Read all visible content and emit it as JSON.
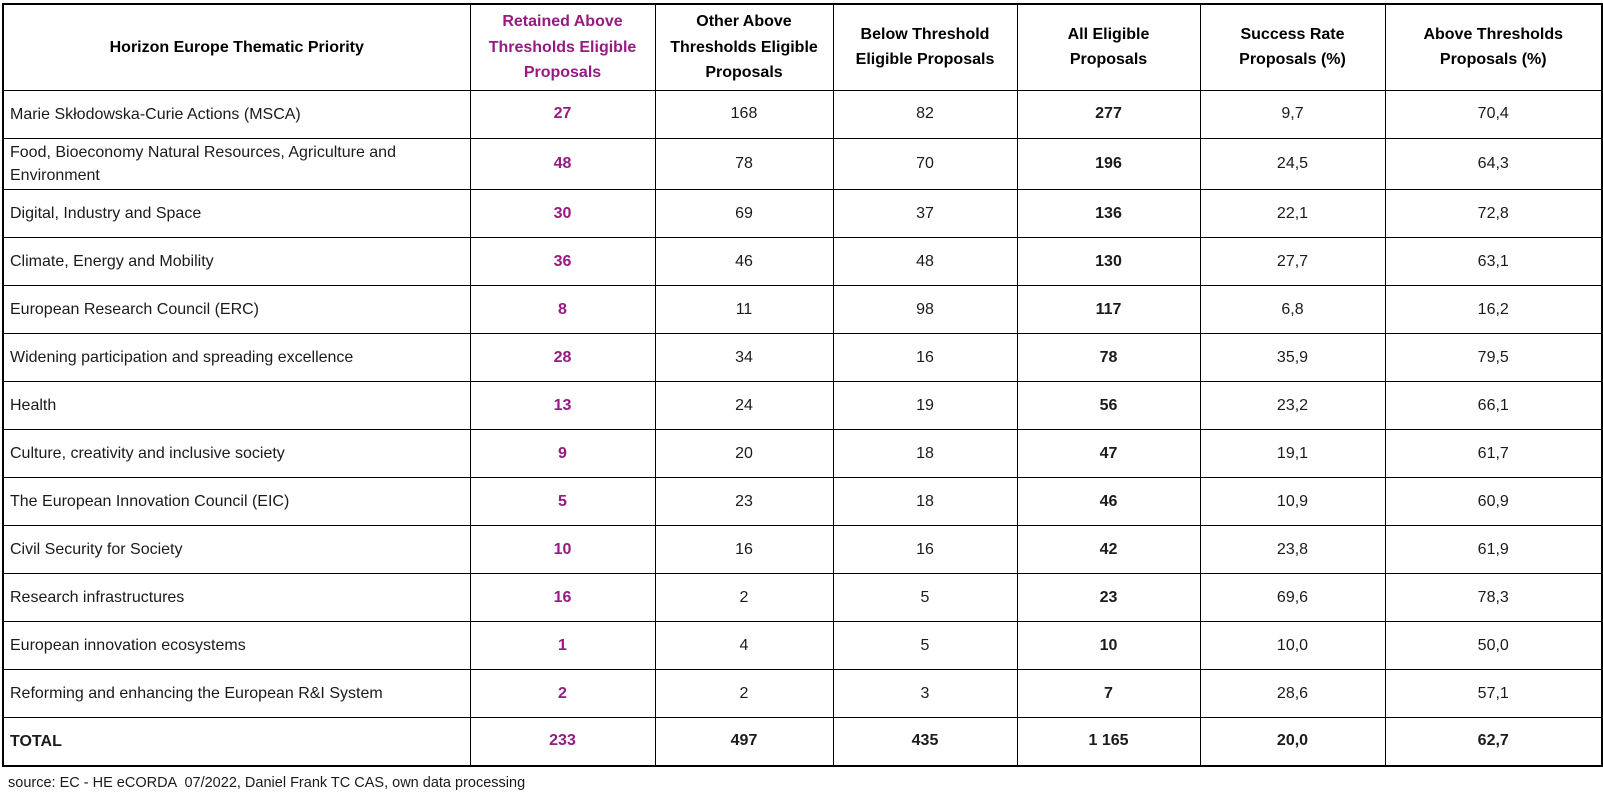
{
  "colors": {
    "accent_purple": "#951B81",
    "border": "#000000",
    "background": "#FFFFFF"
  },
  "table": {
    "columns": [
      {
        "label": "Horizon Europe Thematic Priority"
      },
      {
        "label": "Retained Above Thresholds Eligible Proposals",
        "accent": "purple"
      },
      {
        "label": "Other Above Thresholds Eligible Proposals"
      },
      {
        "label": "Below Threshold Eligible Proposals"
      },
      {
        "label": "All Eligible Proposals"
      },
      {
        "label": "Success Rate Proposals (%)"
      },
      {
        "label": "Above Thresholds Proposals (%)"
      }
    ],
    "rows": [
      {
        "priority": "Marie Skłodowska-Curie Actions (MSCA)",
        "retained": "27",
        "other": "168",
        "below": "82",
        "all": "277",
        "success": "9,7",
        "above": "70,4"
      },
      {
        "priority": "Food, Bioeconomy Natural Resources, Agriculture and Environment",
        "retained": "48",
        "other": "78",
        "below": "70",
        "all": "196",
        "success": "24,5",
        "above": "64,3"
      },
      {
        "priority": "Digital, Industry and Space",
        "retained": "30",
        "other": "69",
        "below": "37",
        "all": "136",
        "success": "22,1",
        "above": "72,8"
      },
      {
        "priority": "Climate, Energy and Mobility",
        "retained": "36",
        "other": "46",
        "below": "48",
        "all": "130",
        "success": "27,7",
        "above": "63,1"
      },
      {
        "priority": "European Research Council (ERC)",
        "retained": "8",
        "other": "11",
        "below": "98",
        "all": "117",
        "success": "6,8",
        "above": "16,2"
      },
      {
        "priority": "Widening participation and spreading excellence",
        "retained": "28",
        "other": "34",
        "below": "16",
        "all": "78",
        "success": "35,9",
        "above": "79,5"
      },
      {
        "priority": "Health",
        "retained": "13",
        "other": "24",
        "below": "19",
        "all": "56",
        "success": "23,2",
        "above": "66,1"
      },
      {
        "priority": "Culture, creativity and inclusive society",
        "retained": "9",
        "other": "20",
        "below": "18",
        "all": "47",
        "success": "19,1",
        "above": "61,7"
      },
      {
        "priority": "The European Innovation Council (EIC)",
        "retained": "5",
        "other": "23",
        "below": "18",
        "all": "46",
        "success": "10,9",
        "above": "60,9"
      },
      {
        "priority": "Civil Security for Society",
        "retained": "10",
        "other": "16",
        "below": "16",
        "all": "42",
        "success": "23,8",
        "above": "61,9"
      },
      {
        "priority": "Research infrastructures",
        "retained": "16",
        "other": "2",
        "below": "5",
        "all": "23",
        "success": "69,6",
        "above": "78,3"
      },
      {
        "priority": "European innovation ecosystems",
        "retained": "1",
        "other": "4",
        "below": "5",
        "all": "10",
        "success": "10,0",
        "above": "50,0"
      },
      {
        "priority": "Reforming and enhancing the European R&I System",
        "retained": "2",
        "other": "2",
        "below": "3",
        "all": "7",
        "success": "28,6",
        "above": "57,1"
      }
    ],
    "total": {
      "priority": "TOTAL",
      "retained": "233",
      "other": "497",
      "below": "435",
      "all": "1 165",
      "success": "20,0",
      "above": "62,7"
    },
    "source": "source: EC - HE eCORDA  07/2022, Daniel Frank TC CAS, own data processing"
  }
}
